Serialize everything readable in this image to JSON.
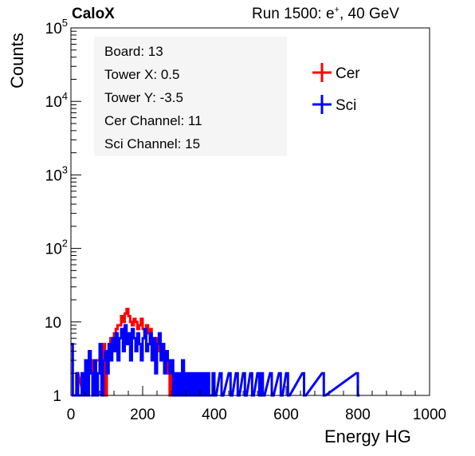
{
  "header": {
    "experiment": "CaloX",
    "run_prefix": "Run 1500: e",
    "run_sup": "+",
    "run_suffix": ", 40 GeV"
  },
  "chart_data": {
    "type": "line",
    "xlabel": "Energy HG",
    "ylabel": "Counts",
    "xlim": [
      0,
      1000
    ],
    "ylim": [
      1,
      100000
    ],
    "y_scale": "log",
    "grid": false,
    "legend_position": "top-right",
    "x_ticks": [
      0,
      200,
      400,
      600,
      800,
      1000
    ],
    "x_tick_labels": [
      "0",
      "200",
      "400",
      "600",
      "800",
      "1000"
    ],
    "y_ticks": [
      1,
      10,
      100,
      1000,
      10000,
      100000
    ],
    "y_tick_labels": [
      {
        "base": "1",
        "exp": ""
      },
      {
        "base": "10",
        "exp": ""
      },
      {
        "base": "10",
        "exp": "2"
      },
      {
        "base": "10",
        "exp": "3"
      },
      {
        "base": "10",
        "exp": "4"
      },
      {
        "base": "10",
        "exp": "5"
      }
    ],
    "info_box": [
      "Board: 13",
      "Tower X: 0.5",
      "Tower Y: -3.5",
      "Cer Channel: 11",
      "Sci Channel: 15"
    ],
    "series": [
      {
        "name": "Cer",
        "color": "#ff0000",
        "points": [
          [
            15,
            2
          ],
          [
            35,
            1
          ],
          [
            40,
            2
          ],
          [
            45,
            1
          ],
          [
            50,
            2
          ],
          [
            55,
            3
          ],
          [
            60,
            1
          ],
          [
            65,
            2
          ],
          [
            70,
            3
          ],
          [
            75,
            3
          ],
          [
            80,
            4
          ],
          [
            85,
            2
          ],
          [
            90,
            5
          ],
          [
            95,
            1
          ],
          [
            100,
            4
          ],
          [
            105,
            3
          ],
          [
            110,
            6
          ],
          [
            115,
            5
          ],
          [
            120,
            7
          ],
          [
            125,
            8
          ],
          [
            130,
            9
          ],
          [
            135,
            9
          ],
          [
            140,
            12
          ],
          [
            145,
            10
          ],
          [
            150,
            13
          ],
          [
            155,
            15
          ],
          [
            160,
            12
          ],
          [
            165,
            10
          ],
          [
            170,
            9
          ],
          [
            175,
            11
          ],
          [
            180,
            10
          ],
          [
            185,
            8
          ],
          [
            190,
            9
          ],
          [
            195,
            11
          ],
          [
            200,
            8
          ],
          [
            205,
            7
          ],
          [
            210,
            9
          ],
          [
            215,
            7
          ],
          [
            220,
            8
          ],
          [
            225,
            6
          ],
          [
            230,
            6
          ],
          [
            235,
            5
          ],
          [
            240,
            6
          ],
          [
            245,
            4
          ],
          [
            250,
            5
          ],
          [
            255,
            3
          ],
          [
            260,
            4
          ],
          [
            265,
            3
          ],
          [
            270,
            2
          ],
          [
            275,
            1
          ],
          [
            280,
            2
          ],
          [
            285,
            1
          ],
          [
            295,
            1
          ],
          [
            305,
            1
          ]
        ]
      },
      {
        "name": "Sci",
        "color": "#0000ff",
        "points": [
          [
            0,
            5
          ],
          [
            5,
            1
          ],
          [
            10,
            1
          ],
          [
            15,
            2
          ],
          [
            20,
            1
          ],
          [
            25,
            1
          ],
          [
            30,
            2
          ],
          [
            35,
            1
          ],
          [
            40,
            3
          ],
          [
            45,
            1
          ],
          [
            50,
            4
          ],
          [
            55,
            2
          ],
          [
            60,
            1
          ],
          [
            65,
            3
          ],
          [
            70,
            1
          ],
          [
            75,
            2
          ],
          [
            80,
            5
          ],
          [
            85,
            1
          ],
          [
            90,
            3
          ],
          [
            95,
            4
          ],
          [
            100,
            2
          ],
          [
            105,
            5
          ],
          [
            110,
            3
          ],
          [
            115,
            6
          ],
          [
            120,
            4
          ],
          [
            125,
            7
          ],
          [
            130,
            3
          ],
          [
            135,
            6
          ],
          [
            140,
            8
          ],
          [
            145,
            4
          ],
          [
            150,
            9
          ],
          [
            155,
            5
          ],
          [
            160,
            7
          ],
          [
            165,
            3
          ],
          [
            170,
            8
          ],
          [
            175,
            6
          ],
          [
            180,
            4
          ],
          [
            185,
            7
          ],
          [
            190,
            5
          ],
          [
            195,
            3
          ],
          [
            200,
            6
          ],
          [
            205,
            8
          ],
          [
            210,
            4
          ],
          [
            215,
            5
          ],
          [
            220,
            7
          ],
          [
            225,
            3
          ],
          [
            230,
            6
          ],
          [
            235,
            2
          ],
          [
            240,
            5
          ],
          [
            245,
            7
          ],
          [
            250,
            3
          ],
          [
            255,
            5
          ],
          [
            260,
            2
          ],
          [
            265,
            4
          ],
          [
            270,
            3
          ],
          [
            275,
            2
          ],
          [
            280,
            3
          ],
          [
            285,
            1
          ],
          [
            290,
            2
          ],
          [
            295,
            1
          ],
          [
            300,
            2
          ],
          [
            305,
            1
          ],
          [
            310,
            3
          ],
          [
            315,
            1
          ],
          [
            320,
            2
          ],
          [
            325,
            1
          ],
          [
            330,
            2
          ],
          [
            335,
            1
          ],
          [
            340,
            2
          ],
          [
            345,
            1
          ],
          [
            350,
            2
          ],
          [
            355,
            1
          ],
          [
            360,
            2
          ],
          [
            365,
            1
          ],
          [
            370,
            2
          ],
          [
            375,
            1
          ],
          [
            380,
            2
          ],
          [
            385,
            1
          ],
          [
            390,
            1
          ],
          [
            395,
            2
          ],
          [
            400,
            1
          ],
          [
            415,
            2
          ],
          [
            420,
            1
          ],
          [
            440,
            2
          ],
          [
            445,
            1
          ],
          [
            460,
            2
          ],
          [
            465,
            1
          ],
          [
            480,
            2
          ],
          [
            485,
            1
          ],
          [
            500,
            2
          ],
          [
            505,
            1
          ],
          [
            520,
            2
          ],
          [
            525,
            1
          ],
          [
            530,
            2
          ],
          [
            535,
            1
          ],
          [
            555,
            2
          ],
          [
            560,
            1
          ],
          [
            580,
            2
          ],
          [
            585,
            1
          ],
          [
            600,
            2
          ],
          [
            605,
            1
          ],
          [
            645,
            2
          ],
          [
            650,
            1
          ],
          [
            700,
            2
          ],
          [
            705,
            1
          ],
          [
            795,
            2
          ],
          [
            800,
            1
          ]
        ]
      }
    ]
  }
}
